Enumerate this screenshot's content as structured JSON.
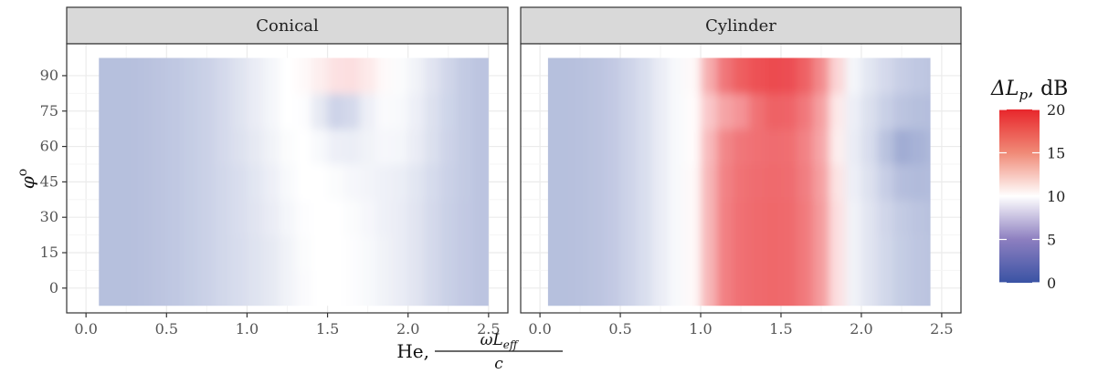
{
  "chart_data": {
    "type": "heatmap",
    "facets": [
      "Conical",
      "Cylinder"
    ],
    "xlabel_prefix": "He,",
    "xlabel_fraction": {
      "numerator": "ωL",
      "subscript": "eff",
      "denominator": "c"
    },
    "ylabel": {
      "base": "φ",
      "superscript": "o"
    },
    "x_ticks": [
      "0.0",
      "0.5",
      "1.0",
      "1.5",
      "2.0",
      "2.5"
    ],
    "x_tick_values": [
      0,
      0.5,
      1.0,
      1.5,
      2.0,
      2.5
    ],
    "y_ticks": [
      "0",
      "15",
      "30",
      "45",
      "60",
      "75",
      "90"
    ],
    "y_tick_values": [
      0,
      15,
      30,
      45,
      60,
      75,
      90
    ],
    "xlim": [
      -0.12,
      2.62
    ],
    "ylim": [
      -10.5,
      103.5
    ],
    "x_grid": [
      0.05,
      0.15,
      0.25,
      0.35,
      0.45,
      0.55,
      0.65,
      0.75,
      0.85,
      0.95,
      1.05,
      1.15,
      1.25,
      1.35,
      1.45,
      1.55,
      1.65,
      1.75,
      1.85,
      1.95,
      2.05,
      2.15,
      2.25,
      2.35,
      2.45
    ],
    "y": [
      0,
      15,
      30,
      45,
      60,
      75,
      90
    ],
    "panels": [
      {
        "name": "Conical",
        "x_range": [
          0.08,
          2.5
        ],
        "y_range": [
          -7.5,
          97.5
        ],
        "values": [
          [
            6.0,
            6.0,
            6.0,
            6.1,
            6.3,
            6.5,
            6.8,
            7.1,
            7.5,
            7.8,
            8.2,
            8.6,
            9.2,
            9.7,
            10.0,
            10.0,
            9.9,
            9.6,
            9.2,
            8.8,
            8.3,
            7.6,
            7.0,
            6.6,
            6.3
          ],
          [
            6.0,
            6.0,
            6.0,
            6.1,
            6.3,
            6.5,
            6.8,
            7.1,
            7.5,
            7.8,
            8.2,
            8.6,
            9.2,
            9.8,
            10.0,
            10.0,
            9.9,
            9.6,
            9.2,
            8.8,
            8.3,
            7.6,
            7.0,
            6.6,
            6.3
          ],
          [
            6.0,
            6.0,
            6.0,
            6.1,
            6.3,
            6.5,
            6.8,
            7.1,
            7.5,
            7.9,
            8.3,
            8.8,
            9.4,
            9.9,
            10.0,
            10.0,
            9.8,
            9.5,
            9.1,
            8.8,
            8.3,
            7.6,
            7.0,
            6.6,
            6.3
          ],
          [
            6.0,
            6.0,
            6.0,
            6.1,
            6.3,
            6.5,
            6.8,
            7.1,
            7.5,
            7.9,
            8.4,
            9.0,
            9.6,
            10.0,
            10.0,
            9.8,
            9.5,
            9.3,
            9.1,
            8.9,
            8.4,
            7.7,
            7.1,
            6.7,
            6.3
          ],
          [
            6.0,
            6.0,
            6.0,
            6.1,
            6.3,
            6.5,
            6.8,
            7.1,
            7.6,
            8.1,
            8.6,
            9.2,
            9.8,
            10.0,
            9.6,
            9.0,
            8.9,
            9.2,
            9.5,
            9.4,
            8.8,
            8.0,
            7.2,
            6.7,
            6.3
          ],
          [
            6.0,
            6.0,
            6.0,
            6.1,
            6.3,
            6.5,
            6.8,
            7.1,
            7.6,
            8.2,
            8.8,
            9.4,
            10.0,
            9.9,
            8.6,
            7.2,
            7.6,
            9.0,
            9.7,
            9.6,
            9.0,
            8.1,
            7.3,
            6.7,
            6.3
          ],
          [
            6.0,
            6.0,
            6.0,
            6.1,
            6.3,
            6.5,
            6.8,
            7.1,
            7.6,
            8.2,
            8.8,
            9.4,
            10.0,
            10.2,
            10.6,
            11.1,
            11.2,
            10.8,
            10.2,
            9.8,
            9.2,
            8.3,
            7.4,
            6.7,
            6.3
          ]
        ]
      },
      {
        "name": "Cylinder",
        "x_range": [
          0.05,
          2.43
        ],
        "y_range": [
          -7.5,
          97.5
        ],
        "values": [
          [
            6.0,
            6.0,
            6.1,
            6.3,
            6.6,
            7.2,
            7.9,
            8.8,
            9.6,
            10.2,
            13.0,
            15.5,
            16.3,
            16.6,
            16.7,
            16.6,
            15.8,
            14.2,
            11.2,
            9.2,
            8.3,
            7.5,
            6.8,
            6.4,
            6.2
          ],
          [
            6.0,
            6.0,
            6.1,
            6.3,
            6.6,
            7.2,
            7.9,
            8.8,
            9.6,
            10.2,
            13.0,
            15.5,
            16.3,
            16.6,
            16.7,
            16.6,
            15.8,
            14.2,
            11.2,
            9.2,
            8.3,
            7.5,
            6.8,
            6.4,
            6.2
          ],
          [
            6.0,
            6.0,
            6.1,
            6.3,
            6.6,
            7.2,
            7.9,
            8.8,
            9.6,
            10.2,
            13.0,
            15.5,
            16.3,
            16.6,
            16.7,
            16.6,
            15.8,
            14.2,
            11.2,
            9.2,
            8.3,
            7.4,
            6.7,
            6.3,
            6.1
          ],
          [
            6.0,
            6.0,
            6.1,
            6.3,
            6.6,
            7.2,
            7.9,
            8.8,
            9.6,
            10.2,
            13.0,
            15.4,
            16.2,
            16.5,
            16.6,
            16.5,
            15.6,
            14.0,
            11.0,
            9.0,
            8.1,
            6.9,
            5.9,
            5.7,
            5.8
          ],
          [
            6.0,
            6.0,
            6.1,
            6.3,
            6.6,
            7.2,
            7.9,
            8.8,
            9.6,
            10.1,
            12.8,
            15.2,
            16.0,
            16.3,
            16.5,
            16.4,
            15.4,
            13.7,
            10.6,
            8.8,
            7.8,
            6.2,
            4.8,
            5.2,
            5.6
          ],
          [
            6.0,
            6.0,
            6.1,
            6.3,
            6.6,
            7.2,
            7.9,
            8.8,
            9.6,
            10.1,
            12.2,
            13.8,
            14.6,
            16.2,
            17.0,
            16.9,
            15.9,
            14.0,
            10.8,
            9.0,
            8.0,
            7.0,
            6.3,
            6.0,
            5.9
          ],
          [
            6.0,
            6.0,
            6.1,
            6.3,
            6.6,
            7.2,
            7.9,
            8.8,
            9.6,
            10.2,
            13.4,
            16.0,
            17.2,
            17.8,
            18.1,
            18.0,
            17.0,
            15.0,
            11.6,
            9.4,
            8.4,
            7.6,
            6.9,
            6.5,
            6.3
          ]
        ]
      }
    ],
    "legend": {
      "title_symbol": "ΔL",
      "title_subscript": "p",
      "title_suffix": ", dB",
      "ticks": [
        "0",
        "5",
        "10",
        "15",
        "20"
      ],
      "tick_values": [
        0,
        5,
        10,
        15,
        20
      ],
      "range": [
        0,
        20
      ],
      "placement": "right"
    },
    "colors": {
      "low": "#3a53a4",
      "mid": "#ffffff",
      "high": "#e8262b",
      "strip_bg": "#d9d9d9",
      "grid_major": "#ebebeb",
      "grid_minor": "#f5f5f5",
      "panel_border": "#333333"
    }
  }
}
